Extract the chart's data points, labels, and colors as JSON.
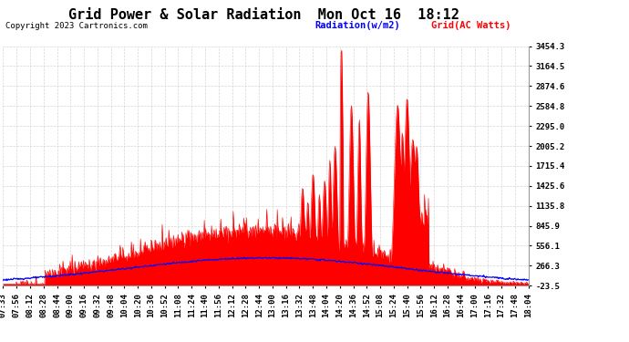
{
  "title": "Grid Power & Solar Radiation  Mon Oct 16  18:12",
  "copyright": "Copyright 2023 Cartronics.com",
  "legend_radiation": "Radiation(w/m2)",
  "legend_grid": "Grid(AC Watts)",
  "ylabel_right_ticks": [
    3454.3,
    3164.5,
    2874.6,
    2584.8,
    2295.0,
    2005.2,
    1715.4,
    1425.6,
    1135.8,
    845.9,
    556.1,
    266.3,
    -23.5
  ],
  "ymin": -23.5,
  "ymax": 3454.3,
  "background_color": "#ffffff",
  "plot_bg_color": "#ffffff",
  "grid_color": "#cccccc",
  "radiation_color": "#0000ff",
  "grid_power_color": "#ff0000",
  "fill_color": "#ff0000",
  "title_fontsize": 11,
  "tick_fontsize": 6.5,
  "xtick_labels": [
    "07:33",
    "07:56",
    "08:12",
    "08:28",
    "08:44",
    "09:00",
    "09:16",
    "09:32",
    "09:48",
    "10:04",
    "10:20",
    "10:36",
    "10:52",
    "11:08",
    "11:24",
    "11:40",
    "11:56",
    "12:12",
    "12:28",
    "12:44",
    "13:00",
    "13:16",
    "13:32",
    "13:48",
    "14:04",
    "14:20",
    "14:36",
    "14:52",
    "15:08",
    "15:24",
    "15:40",
    "15:56",
    "16:12",
    "16:28",
    "16:44",
    "17:00",
    "17:16",
    "17:32",
    "17:48",
    "18:04"
  ]
}
